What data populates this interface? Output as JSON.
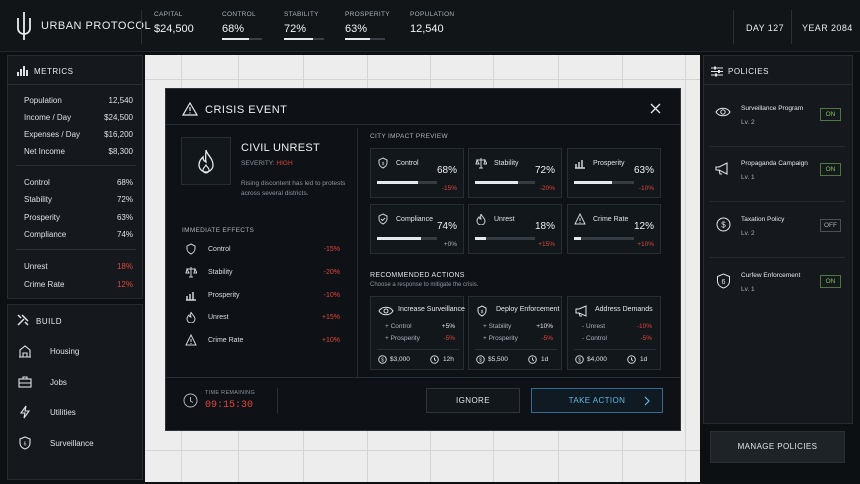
{
  "app": {
    "title": "URBAN PROTOCOL"
  },
  "topstats": [
    {
      "label": "CAPITAL",
      "value": "$24,500"
    },
    {
      "label": "CONTROL",
      "value": "68%",
      "level": 0.68
    },
    {
      "label": "STABILITY",
      "value": "72%",
      "level": 0.72
    },
    {
      "label": "PROSPERITY",
      "value": "63%",
      "level": 0.63
    },
    {
      "label": "POPULATION",
      "value": "12,540"
    }
  ],
  "time": {
    "day": "DAY 127",
    "year": "YEAR 2084"
  },
  "metrics": {
    "title": "METRICS",
    "rows": [
      {
        "label": "Population",
        "value": "12,540"
      },
      {
        "label": "Income / Day",
        "value": "$24,500"
      },
      {
        "label": "Expenses / Day",
        "value": "$16,200"
      },
      {
        "label": "Net Income",
        "value": "$8,300"
      },
      {
        "label": "Control",
        "value": "68%"
      },
      {
        "label": "Stability",
        "value": "72%"
      },
      {
        "label": "Prosperity",
        "value": "63%"
      },
      {
        "label": "Compliance",
        "value": "74%"
      },
      {
        "label": "Unrest",
        "value": "18%"
      },
      {
        "label": "Crime Rate",
        "value": "12%"
      }
    ]
  },
  "build": {
    "title": "BUILD",
    "items": [
      {
        "label": "Housing",
        "icon": "building-icon"
      },
      {
        "label": "Jobs",
        "icon": "briefcase-icon"
      },
      {
        "label": "Utilities",
        "icon": "lightning-icon"
      },
      {
        "label": "Surveillance",
        "icon": "shield-icon"
      }
    ]
  },
  "policies": {
    "title": "POLICIES",
    "items": [
      {
        "name": "Surveillance Program",
        "level": "Lv. 2",
        "state": "ON"
      },
      {
        "name": "Propaganda Campaign",
        "level": "Lv. 1",
        "state": "ON"
      },
      {
        "name": "Taxation Policy",
        "level": "Lv. 2",
        "state": "OFF"
      },
      {
        "name": "Curfew Enforcement",
        "level": "Lv. 1",
        "state": "ON"
      }
    ],
    "manage_label": "MANAGE POLICIES"
  },
  "modal": {
    "title": "CRISIS EVENT",
    "event": {
      "name": "CIVIL UNREST",
      "severity_label": "SEVERITY:",
      "severity_value": "HIGH",
      "description": "Rising discontent has led to protests across several districts."
    },
    "effects_title": "IMMEDIATE EFFECTS",
    "effects": [
      {
        "label": "Control",
        "value": "-15%"
      },
      {
        "label": "Stability",
        "value": "-20%"
      },
      {
        "label": "Prosperity",
        "value": "-10%"
      },
      {
        "label": "Unrest",
        "value": "+15%"
      },
      {
        "label": "Crime Rate",
        "value": "+10%"
      }
    ],
    "impact_title": "CITY IMPACT PREVIEW",
    "impacts": [
      {
        "label": "Control",
        "value": "68%",
        "delta": "-15%",
        "level": 0.68
      },
      {
        "label": "Stability",
        "value": "72%",
        "delta": "-20%",
        "level": 0.72
      },
      {
        "label": "Prosperity",
        "value": "63%",
        "delta": "-10%",
        "level": 0.63
      },
      {
        "label": "Compliance",
        "value": "74%",
        "delta": "+0%",
        "level": 0.74
      },
      {
        "label": "Unrest",
        "value": "18%",
        "delta": "+15%",
        "level": 0.18
      },
      {
        "label": "Crime Rate",
        "value": "12%",
        "delta": "+10%",
        "level": 0.12
      }
    ],
    "actions_title": "RECOMMENDED ACTIONS",
    "actions_subtitle": "Choose a response to mitigate the crisis.",
    "actions": [
      {
        "name": "Increase Surveillance",
        "lines": [
          {
            "label": "+ Control",
            "value": "+5%"
          },
          {
            "label": "+ Prosperity",
            "value": "-5%"
          }
        ],
        "cost": "$3,000",
        "time": "12h"
      },
      {
        "name": "Deploy Enforcement",
        "lines": [
          {
            "label": "+ Stability",
            "value": "+10%"
          },
          {
            "label": "+ Prosperity",
            "value": "-5%"
          }
        ],
        "cost": "$5,500",
        "time": "1d"
      },
      {
        "name": "Address Demands",
        "lines": [
          {
            "label": "- Unrest",
            "value": "-10%"
          },
          {
            "label": "- Control",
            "value": "-5%"
          }
        ],
        "cost": "$4,000",
        "time": "1d"
      }
    ],
    "timer_label": "TIME REMAINING",
    "timer_value": "09:15:30",
    "ignore_label": "IGNORE",
    "take_action_label": "TAKE ACTION"
  },
  "colors": {
    "accent": "#e0453a",
    "on": "#7fc35d",
    "bg": "#0d1013"
  }
}
